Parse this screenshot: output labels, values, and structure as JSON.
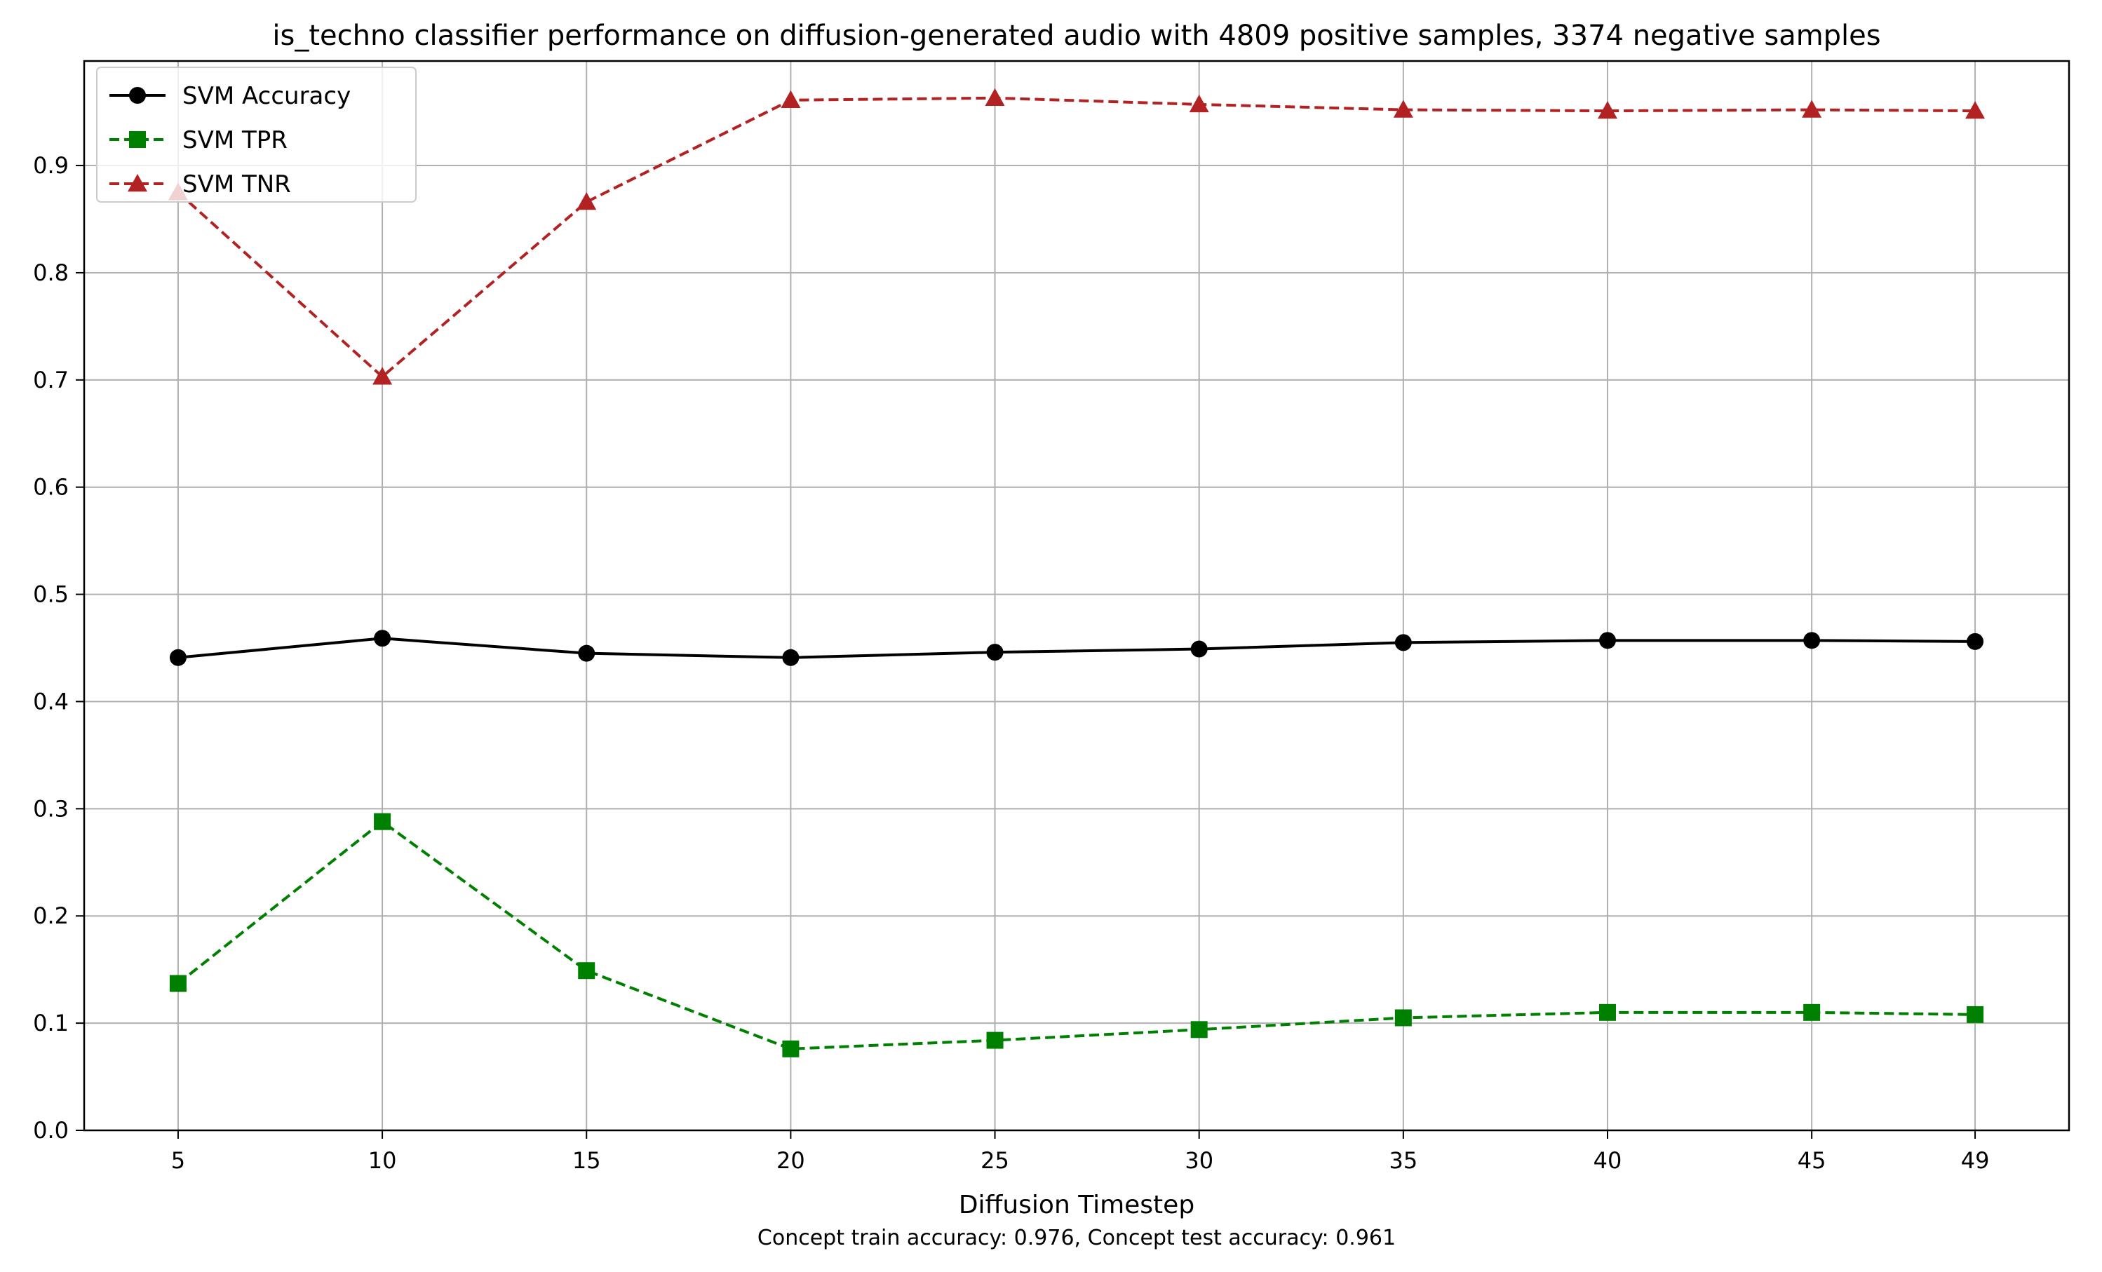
{
  "chart_data": {
    "type": "line",
    "title": "is_techno classifier performance on diffusion-generated audio with 4809 positive samples, 3374 negative samples",
    "xlabel": "Diffusion Timestep",
    "ylabel": "",
    "caption": "Concept train accuracy: 0.976, Concept test accuracy: 0.961",
    "x": [
      5,
      10,
      15,
      20,
      25,
      30,
      35,
      40,
      45,
      49
    ],
    "x_ticks": [
      "5",
      "10",
      "15",
      "20",
      "25",
      "30",
      "35",
      "40",
      "45",
      "49"
    ],
    "xlim": [
      2.7,
      51.3
    ],
    "ylim": [
      0.0,
      0.9975
    ],
    "y_ticks": [
      0.0,
      0.1,
      0.2,
      0.3,
      0.4,
      0.5,
      0.6,
      0.7,
      0.8,
      0.9
    ],
    "y_tick_labels": [
      "0.0",
      "0.1",
      "0.2",
      "0.3",
      "0.4",
      "0.5",
      "0.6",
      "0.7",
      "0.8",
      "0.9"
    ],
    "grid": true,
    "legend_position": "top-left",
    "series": [
      {
        "name": "SVM Accuracy",
        "color": "#000000",
        "dash": "solid",
        "marker": "circle",
        "values": [
          0.441,
          0.459,
          0.445,
          0.441,
          0.446,
          0.449,
          0.455,
          0.457,
          0.457,
          0.456
        ]
      },
      {
        "name": "SVM TPR",
        "color": "#008000",
        "dash": "dashed",
        "marker": "square",
        "values": [
          0.137,
          0.288,
          0.149,
          0.076,
          0.084,
          0.094,
          0.105,
          0.11,
          0.11,
          0.108
        ]
      },
      {
        "name": "SVM TNR",
        "color": "#b22222",
        "dash": "dashed",
        "marker": "triangle",
        "values": [
          0.875,
          0.703,
          0.866,
          0.961,
          0.963,
          0.957,
          0.952,
          0.951,
          0.952,
          0.951
        ]
      }
    ]
  }
}
